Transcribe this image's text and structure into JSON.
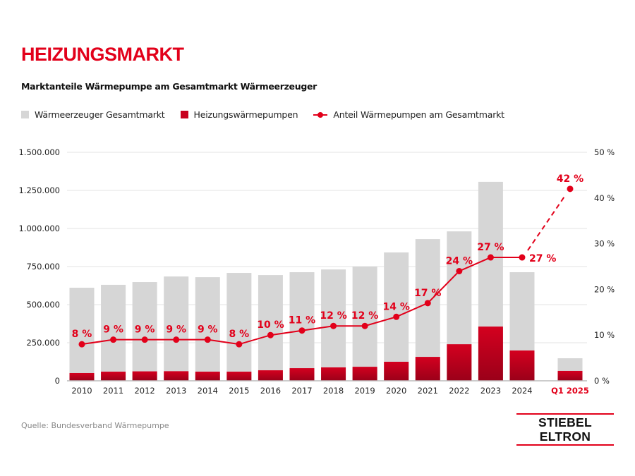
{
  "header": {
    "title": "HEIZUNGSMARKT",
    "subtitle": "Marktanteile Wärmepumpe am Gesamtmarkt Wärmeerzeuger"
  },
  "footer": {
    "source": "Quelle: Bundesverband Wärmepumpe",
    "logo": "STIEBEL ELTRON"
  },
  "colors": {
    "accent": "#e2001a",
    "gray_bar": "#d6d6d6",
    "grid": "#e3e3e3"
  },
  "chart_data": {
    "type": "bar",
    "title": "Marktanteile Wärmepumpe am Gesamtmarkt Wärmeerzeuger",
    "categories": [
      "2010",
      "2011",
      "2012",
      "2013",
      "2014",
      "2015",
      "2016",
      "2017",
      "2018",
      "2019",
      "2020",
      "2021",
      "2022",
      "2023",
      "2024",
      "Q1 2025"
    ],
    "series": [
      {
        "name": "Wärmeerzeuger Gesamtmarkt",
        "type": "bar",
        "axis": "left",
        "values": [
          611000,
          630000,
          648000,
          685000,
          680000,
          708000,
          694000,
          713000,
          731000,
          750000,
          843000,
          930000,
          981000,
          1306000,
          713000,
          148000
        ]
      },
      {
        "name": "Heizungswärmepumpen",
        "type": "bar",
        "axis": "left",
        "values": [
          51000,
          60000,
          62000,
          63000,
          60000,
          60000,
          69000,
          83000,
          88000,
          92000,
          125000,
          157000,
          240000,
          356000,
          199000,
          65000
        ]
      },
      {
        "name": "Anteil Wärmepumpen am Gesamtmarkt",
        "type": "line",
        "axis": "right",
        "values": [
          8,
          9,
          9,
          9,
          9,
          8,
          10,
          11,
          12,
          12,
          14,
          17,
          24,
          27,
          27,
          42
        ],
        "labels": [
          "8 %",
          "9 %",
          "9 %",
          "9 %",
          "9 %",
          "8 %",
          "10 %",
          "11 %",
          "12 %",
          "12 %",
          "14 %",
          "17 %",
          "24 %",
          "27 %",
          "27 %",
          "42 %"
        ]
      }
    ],
    "ylim": [
      0,
      1500000
    ],
    "yticks": [
      "0",
      "250.000",
      "500.000",
      "750.000",
      "1.000.000",
      "1.250.000",
      "1.500.000"
    ],
    "y2lim": [
      0,
      50
    ],
    "y2ticks": [
      "0 %",
      "10 %",
      "20 %",
      "30 %",
      "40 %",
      "50 %"
    ],
    "grid": true,
    "legend": "top-left"
  }
}
